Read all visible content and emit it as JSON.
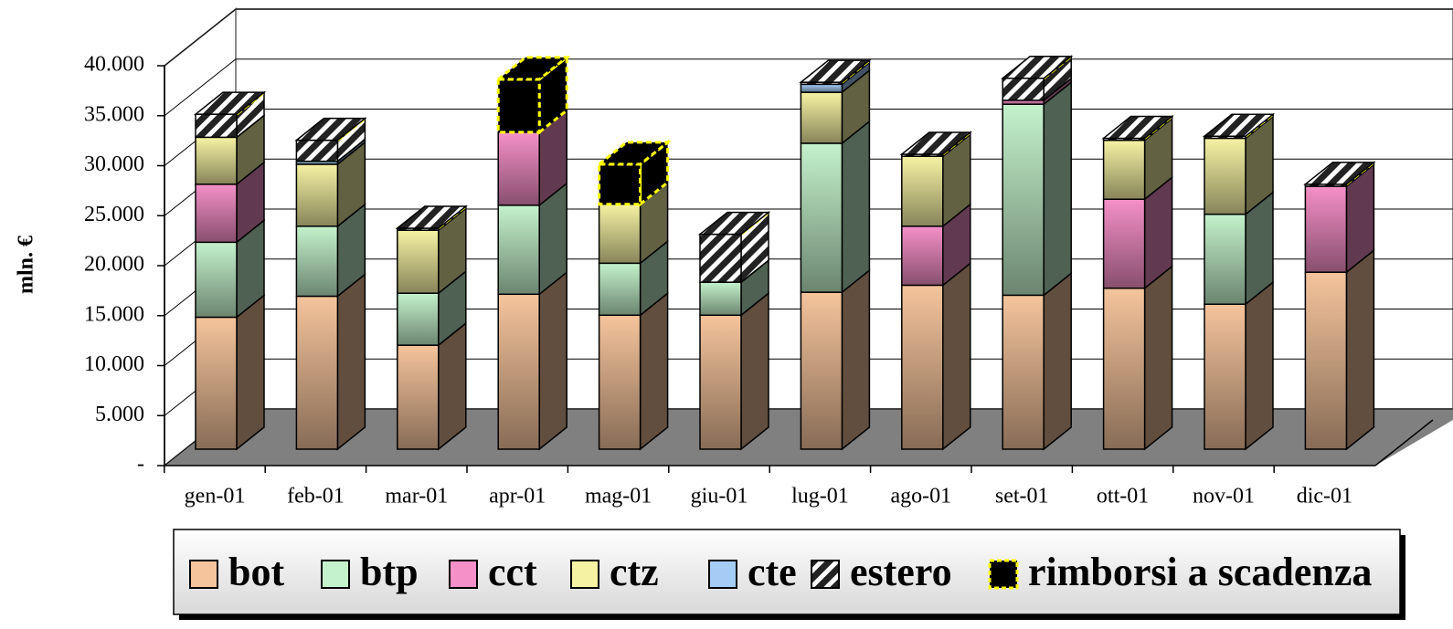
{
  "chart_data": {
    "type": "bar3d_stacked",
    "y_label": "mln. €",
    "categories": [
      "gen-01",
      "feb-01",
      "mar-01",
      "apr-01",
      "mag-01",
      "giu-01",
      "lug-01",
      "ago-01",
      "set-01",
      "ott-01",
      "nov-01",
      "dic-01"
    ],
    "ylim": [
      0,
      40000
    ],
    "yticks": [
      {
        "value": 0,
        "label": "-"
      },
      {
        "value": 5000,
        "label": "5.000"
      },
      {
        "value": 10000,
        "label": "10.000"
      },
      {
        "value": 15000,
        "label": "15.000"
      },
      {
        "value": 20000,
        "label": "20.000"
      },
      {
        "value": 25000,
        "label": "25.000"
      },
      {
        "value": 30000,
        "label": "30.000"
      },
      {
        "value": 35000,
        "label": "35.000"
      },
      {
        "value": 40000,
        "label": "40.000"
      }
    ],
    "grid": true,
    "series": [
      {
        "name": "bot",
        "color": "#f5c49c",
        "values": [
          13200,
          15300,
          10400,
          15500,
          13400,
          13400,
          15700,
          16400,
          15400,
          16100,
          14500,
          17700
        ]
      },
      {
        "name": "btp",
        "color": "#c4f2cc",
        "values": [
          7500,
          7000,
          5200,
          8900,
          5200,
          3300,
          14900,
          0,
          19100,
          0,
          9000,
          0
        ]
      },
      {
        "name": "cct",
        "color": "#f590c8",
        "values": [
          5800,
          0,
          0,
          7300,
          0,
          0,
          0,
          5900,
          400,
          8900,
          0,
          8600
        ]
      },
      {
        "name": "ctz",
        "color": "#f6f2a4",
        "values": [
          4700,
          6200,
          6300,
          0,
          5900,
          0,
          5100,
          7000,
          0,
          5900,
          7600,
          0
        ]
      },
      {
        "name": "cte",
        "color": "#a4ccf4",
        "values": [
          0,
          300,
          0,
          0,
          0,
          0,
          800,
          0,
          0,
          0,
          0,
          0
        ]
      },
      {
        "name": "estero",
        "color": "#404040",
        "pattern": "hatch",
        "values": [
          2300,
          2100,
          200,
          0,
          0,
          4800,
          200,
          200,
          2200,
          200,
          200,
          200
        ]
      },
      {
        "name": "rimborsi a scadenza",
        "color": "#000000",
        "edge_color": "#ffff00",
        "values": [
          0,
          0,
          0,
          5300,
          4000,
          0,
          0,
          0,
          0,
          0,
          0,
          0
        ]
      }
    ]
  }
}
